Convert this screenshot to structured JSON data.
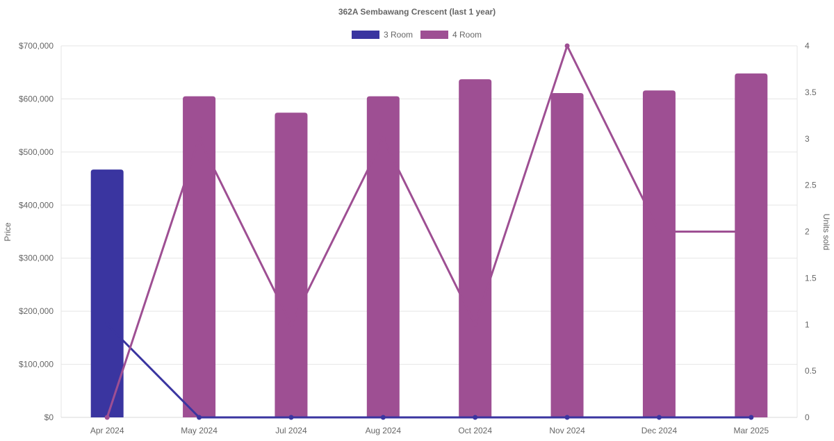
{
  "chart_data": {
    "type": "bar",
    "title": "362A Sembawang Crescent (last 1 year)",
    "categories": [
      "Apr 2024",
      "May 2024",
      "Jul 2024",
      "Aug 2024",
      "Oct 2024",
      "Nov 2024",
      "Dec 2024",
      "Mar 2025"
    ],
    "ylabel_left": "Price",
    "ylabel_right": "Units sold",
    "ylim_left": [
      0,
      700000
    ],
    "ylim_right": [
      0,
      4
    ],
    "left_ticks": [
      "$0",
      "$100,000",
      "$200,000",
      "$300,000",
      "$400,000",
      "$500,000",
      "$600,000",
      "$700,000"
    ],
    "right_ticks": [
      "0",
      "0.5",
      "1",
      "1.5",
      "2",
      "2.5",
      "3",
      "3.5",
      "4"
    ],
    "legend_position": "top-center",
    "grid": true,
    "series": [
      {
        "name": "3 Room",
        "color": "#3a35a0",
        "price": [
          467000,
          null,
          null,
          null,
          null,
          null,
          null,
          null
        ],
        "units_sold": [
          1,
          0,
          0,
          0,
          0,
          0,
          0,
          0
        ]
      },
      {
        "name": "4 Room",
        "color": "#9e4f93",
        "price": [
          null,
          605000,
          574000,
          605000,
          637000,
          611000,
          616000,
          648000
        ],
        "units_sold": [
          0,
          3,
          1,
          3,
          1,
          4,
          2,
          2
        ]
      }
    ]
  }
}
